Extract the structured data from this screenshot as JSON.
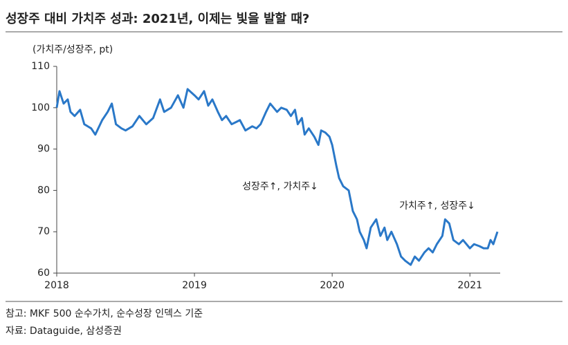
{
  "chart_data": {
    "type": "line",
    "title": "성장주 대비 가치주 성과: 2021년, 이제는 빛을 발할 때?",
    "y_label": "(가치주/성장주, pt)",
    "annotations": [
      "성장주↑, 가치주↓",
      "가치주↑, 성장주↓"
    ],
    "notes": [
      "참고: MKF 500 순수가치, 순수성장 인덱스 기준",
      "자료: Dataguide, 삼성증권"
    ],
    "x": [
      2018.0,
      2018.02,
      2018.05,
      2018.08,
      2018.1,
      2018.13,
      2018.17,
      2018.2,
      2018.25,
      2018.28,
      2018.33,
      2018.37,
      2018.4,
      2018.43,
      2018.47,
      2018.5,
      2018.55,
      2018.6,
      2018.65,
      2018.7,
      2018.75,
      2018.78,
      2018.83,
      2018.88,
      2018.92,
      2018.95,
      2019.0,
      2019.03,
      2019.07,
      2019.1,
      2019.13,
      2019.17,
      2019.2,
      2019.23,
      2019.27,
      2019.3,
      2019.33,
      2019.37,
      2019.42,
      2019.45,
      2019.48,
      2019.52,
      2019.55,
      2019.6,
      2019.63,
      2019.67,
      2019.7,
      2019.73,
      2019.75,
      2019.78,
      2019.8,
      2019.83,
      2019.87,
      2019.9,
      2019.92,
      2019.95,
      2019.98,
      2020.0,
      2020.03,
      2020.05,
      2020.08,
      2020.12,
      2020.15,
      2020.18,
      2020.2,
      2020.23,
      2020.25,
      2020.28,
      2020.32,
      2020.35,
      2020.38,
      2020.4,
      2020.43,
      2020.47,
      2020.5,
      2020.53,
      2020.57,
      2020.6,
      2020.63,
      2020.67,
      2020.7,
      2020.73,
      2020.76,
      2020.8,
      2020.82,
      2020.85,
      2020.88,
      2020.92,
      2020.95,
      2021.0,
      2021.03,
      2021.07,
      2021.1,
      2021.13,
      2021.15,
      2021.17,
      2021.2
    ],
    "series": [
      {
        "name": "가치주/성장주",
        "color": "#2a78c8",
        "values": [
          100,
          104,
          101,
          102,
          99,
          98,
          99.5,
          96,
          95,
          93.5,
          97,
          99,
          101,
          96,
          95,
          94.5,
          95.5,
          98,
          96,
          97.5,
          102,
          99,
          100,
          103,
          100,
          104.5,
          103,
          102,
          104,
          100.5,
          102,
          99,
          97,
          98,
          96,
          96.5,
          97,
          94.5,
          95.5,
          95,
          96,
          99,
          101,
          99,
          100,
          99.5,
          98,
          99.5,
          96,
          97.5,
          93.5,
          95,
          93,
          91,
          94.5,
          94,
          93,
          91,
          86,
          83,
          81,
          80,
          75,
          73,
          70,
          68,
          66,
          71,
          73,
          69,
          71,
          68,
          70,
          67,
          64,
          63,
          62,
          64,
          63,
          65,
          66,
          65,
          67,
          69,
          73,
          72,
          68,
          67,
          68,
          66,
          67,
          66.5,
          66,
          66,
          68,
          67,
          70
        ]
      }
    ],
    "xlim": [
      2018,
      2021.22
    ],
    "xticks": [
      2018,
      2019,
      2020,
      2021
    ],
    "ylim": [
      60,
      110
    ],
    "yticks": [
      60,
      70,
      80,
      90,
      100,
      110
    ]
  }
}
